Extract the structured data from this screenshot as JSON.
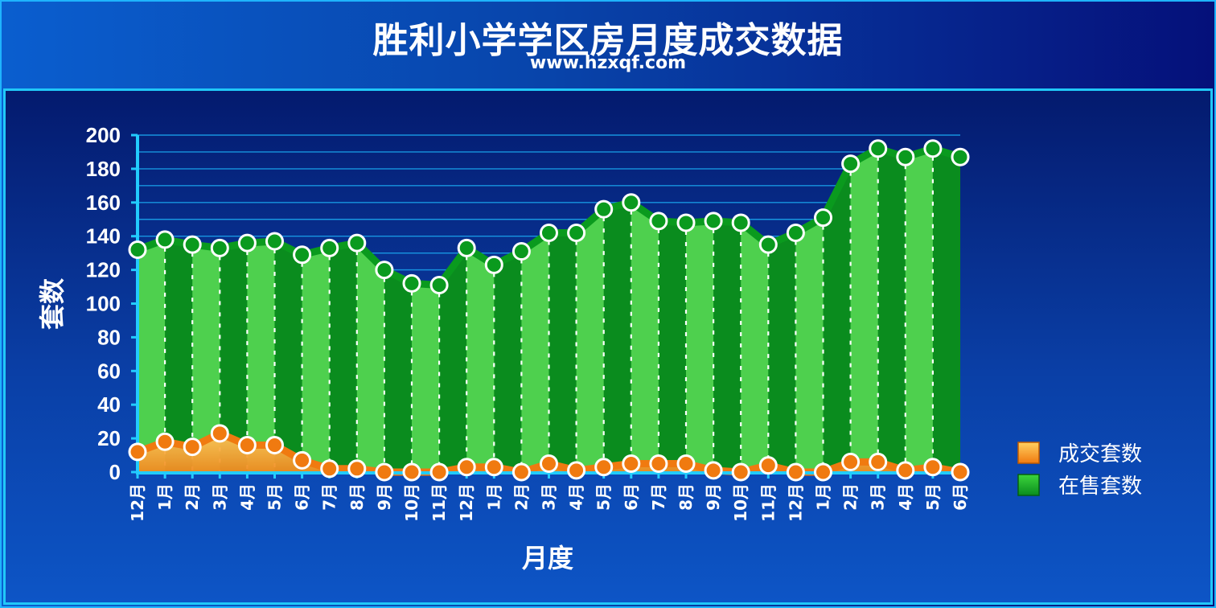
{
  "header": {
    "title": "胜利小学学区房月度成交数据",
    "subtitle": "www.hzxqf.com"
  },
  "colors": {
    "sold_fill": "#f0a23a",
    "sold_line": "#f07a10",
    "listing_dark": "#0a8c1e",
    "listing_light": "#4ed04e",
    "listing_line": "#0a9a1e",
    "grid": "#1aa8f0"
  },
  "chart_data": {
    "type": "area",
    "xlabel": "月度",
    "ylabel": "套数",
    "ylim": [
      0,
      200
    ],
    "yticks": [
      0,
      20,
      40,
      60,
      80,
      100,
      120,
      140,
      160,
      180,
      200
    ],
    "grid": true,
    "legend_position": "right",
    "categories": [
      "12月",
      "1月",
      "2月",
      "3月",
      "4月",
      "5月",
      "6月",
      "7月",
      "8月",
      "9月",
      "10月",
      "11月",
      "12月",
      "1月",
      "2月",
      "3月",
      "4月",
      "5月",
      "6月",
      "7月",
      "8月",
      "9月",
      "10月",
      "11月",
      "12月",
      "1月",
      "2月",
      "3月",
      "4月",
      "5月",
      "6月"
    ],
    "series": [
      {
        "name": "成交套数",
        "values": [
          12,
          18,
          15,
          23,
          16,
          16,
          7,
          2,
          2,
          0,
          0,
          0,
          3,
          3,
          0,
          5,
          1,
          3,
          5,
          5,
          5,
          1,
          0,
          4,
          0,
          0,
          6,
          6,
          1,
          3,
          0
        ]
      },
      {
        "name": "在售套数",
        "values": [
          132,
          138,
          135,
          133,
          136,
          137,
          129,
          133,
          136,
          120,
          112,
          111,
          133,
          123,
          131,
          142,
          142,
          156,
          160,
          149,
          148,
          149,
          148,
          135,
          142,
          151,
          183,
          192,
          187,
          192,
          187
        ]
      }
    ]
  }
}
